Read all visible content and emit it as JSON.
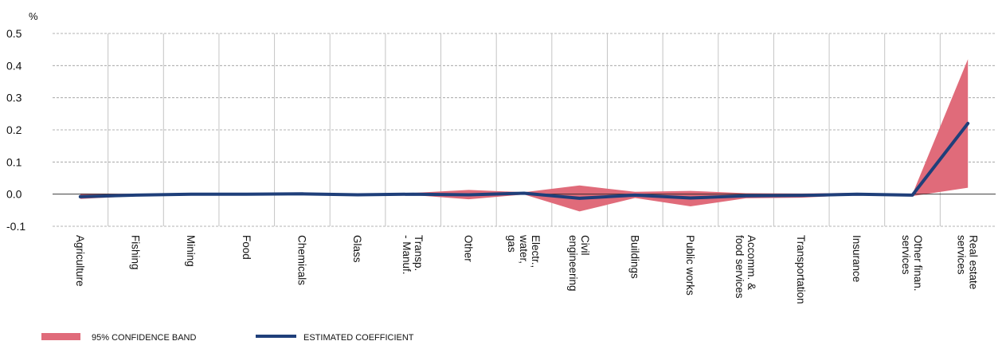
{
  "chart_data": {
    "type": "line",
    "y_unit": "%",
    "categories": [
      [
        "Agriculture"
      ],
      [
        "Fishing"
      ],
      [
        "Mining"
      ],
      [
        "Food"
      ],
      [
        "Chemicals"
      ],
      [
        "Glass"
      ],
      [
        "Transp.",
        "- Manuf."
      ],
      [
        "Other"
      ],
      [
        "Electr.,",
        "water,",
        "gas"
      ],
      [
        "Civil",
        "engineering"
      ],
      [
        "Buildings"
      ],
      [
        "Public works"
      ],
      [
        "Accomm. &",
        "food services"
      ],
      [
        "Transportation"
      ],
      [
        "Insurance"
      ],
      [
        "Other finan.",
        "services"
      ],
      [
        "Real estate",
        "services"
      ]
    ],
    "series": [
      {
        "name": "ESTIMATED COEFFICIENT",
        "values": [
          -0.008,
          -0.003,
          0.0,
          0.0,
          0.001,
          -0.002,
          0.0,
          -0.002,
          0.003,
          -0.013,
          -0.003,
          -0.012,
          -0.005,
          -0.004,
          0.0,
          -0.003,
          0.22
        ]
      }
    ],
    "band": {
      "name": "95% CONFIDENCE BAND",
      "upper": [
        0.002,
        0.001,
        0.003,
        0.002,
        0.003,
        0.001,
        0.004,
        0.013,
        0.006,
        0.027,
        0.007,
        0.01,
        0.003,
        0.002,
        0.004,
        0.0,
        0.42
      ],
      "lower": [
        -0.015,
        -0.006,
        -0.002,
        -0.003,
        -0.002,
        -0.005,
        -0.003,
        -0.016,
        -0.001,
        -0.054,
        -0.012,
        -0.038,
        -0.013,
        -0.011,
        -0.003,
        -0.006,
        0.02
      ]
    },
    "ylim": [
      -0.1,
      0.5
    ],
    "yticks": [
      "0.5",
      "0.4",
      "0.3",
      "0.2",
      "0.1",
      "0.0",
      "-0.1"
    ],
    "ytick_values": [
      0.5,
      0.4,
      0.3,
      0.2,
      0.1,
      0.0,
      -0.1
    ],
    "grid": true,
    "legend_position": "bottom-left",
    "colors": {
      "band": "#e06b7a",
      "line": "#1f3f7a",
      "grid": "#9a9a9a",
      "vgrid": "#c4c4c4"
    }
  }
}
